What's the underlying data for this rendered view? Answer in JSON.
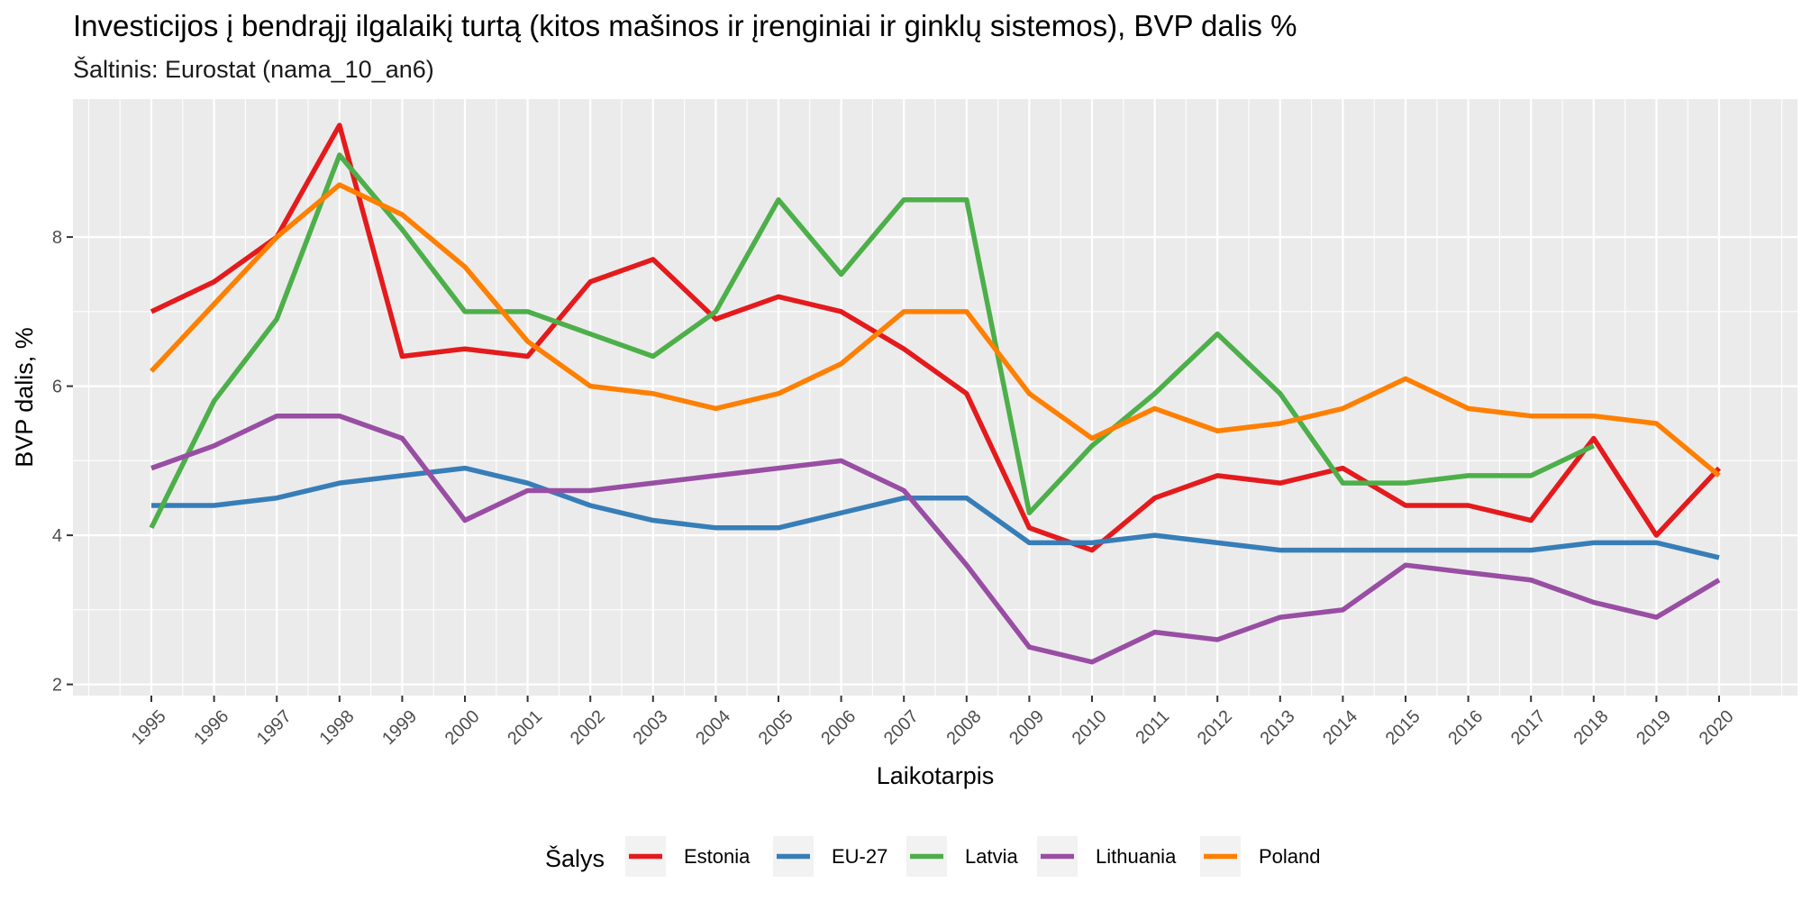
{
  "chart_data": {
    "type": "line",
    "title": "Investicijos į bendrąjį ilgalaikį turtą (kitos mašinos ir įrenginiai ir ginklų sistemos), BVP dalis %",
    "subtitle": "Šaltinis: Eurostat (nama_10_an6)",
    "xlabel": "Laikotarpis",
    "ylabel": "BVP dalis, %",
    "x": [
      1995,
      1996,
      1997,
      1998,
      1999,
      2000,
      2001,
      2002,
      2003,
      2004,
      2005,
      2006,
      2007,
      2008,
      2009,
      2010,
      2011,
      2012,
      2013,
      2014,
      2015,
      2016,
      2017,
      2018,
      2019,
      2020
    ],
    "x_tick_labels": [
      "1995",
      "1996",
      "1997",
      "1998",
      "1999",
      "2000",
      "2001",
      "2002",
      "2003",
      "2004",
      "2005",
      "2006",
      "2007",
      "2008",
      "2009",
      "2010",
      "2011",
      "2012",
      "2013",
      "2014",
      "2015",
      "2016",
      "2017",
      "2018",
      "2019",
      "2020"
    ],
    "xlim": [
      1993.75,
      2021.25
    ],
    "ylim": [
      1.85,
      9.85
    ],
    "y_ticks": [
      2,
      4,
      6,
      8
    ],
    "y_tick_labels": [
      "2",
      "4",
      "6",
      "8"
    ],
    "grid": true,
    "legend": {
      "title": "Šalys",
      "position": "bottom"
    },
    "series": [
      {
        "name": "Estonia",
        "color": "#e41a1c",
        "values": [
          7.0,
          7.4,
          8.0,
          9.5,
          6.4,
          6.5,
          6.4,
          7.4,
          7.7,
          6.9,
          7.2,
          7.0,
          6.5,
          5.9,
          4.1,
          3.8,
          4.5,
          4.8,
          4.7,
          4.9,
          4.4,
          4.4,
          4.2,
          5.3,
          4.0,
          4.9
        ]
      },
      {
        "name": "EU-27",
        "color": "#377eb8",
        "values": [
          4.4,
          4.4,
          4.5,
          4.7,
          4.8,
          4.9,
          4.7,
          4.4,
          4.2,
          4.1,
          4.1,
          4.3,
          4.5,
          4.5,
          3.9,
          3.9,
          4.0,
          3.9,
          3.8,
          3.8,
          3.8,
          3.8,
          3.8,
          3.9,
          3.9,
          3.7
        ]
      },
      {
        "name": "Latvia",
        "color": "#4daf4a",
        "values": [
          4.1,
          5.8,
          6.9,
          9.1,
          8.1,
          7.0,
          7.0,
          6.7,
          6.4,
          7.0,
          8.5,
          7.5,
          8.5,
          8.5,
          4.3,
          5.2,
          5.9,
          6.7,
          5.9,
          4.7,
          4.7,
          4.8,
          4.8,
          5.2,
          null,
          null
        ]
      },
      {
        "name": "Lithuania",
        "color": "#984ea3",
        "values": [
          4.9,
          5.2,
          5.6,
          5.6,
          5.3,
          4.2,
          4.6,
          4.6,
          4.7,
          4.8,
          4.9,
          5.0,
          4.6,
          3.6,
          2.5,
          2.3,
          2.7,
          2.6,
          2.9,
          3.0,
          3.6,
          3.5,
          3.4,
          3.1,
          2.9,
          3.4
        ]
      },
      {
        "name": "Poland",
        "color": "#ff7f00",
        "values": [
          6.2,
          7.1,
          8.0,
          8.7,
          8.3,
          7.6,
          6.6,
          6.0,
          5.9,
          5.7,
          5.9,
          6.3,
          7.0,
          7.0,
          5.9,
          5.3,
          5.7,
          5.4,
          5.5,
          5.7,
          6.1,
          5.7,
          5.6,
          5.6,
          5.5,
          4.8
        ]
      }
    ]
  }
}
